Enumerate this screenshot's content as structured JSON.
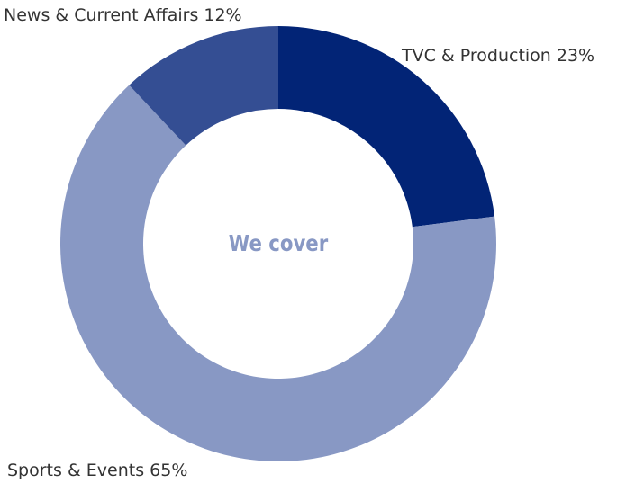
{
  "chart_data": {
    "type": "donut",
    "center_label": "We cover",
    "categories": [
      "TVC & Production",
      "Sports & Events",
      "News & Current Affairs"
    ],
    "values": [
      23,
      65,
      12
    ],
    "value_labels": [
      "23%",
      "65%",
      "12%"
    ],
    "colors": [
      "#022476",
      "#8898c4",
      "#344e93"
    ]
  }
}
